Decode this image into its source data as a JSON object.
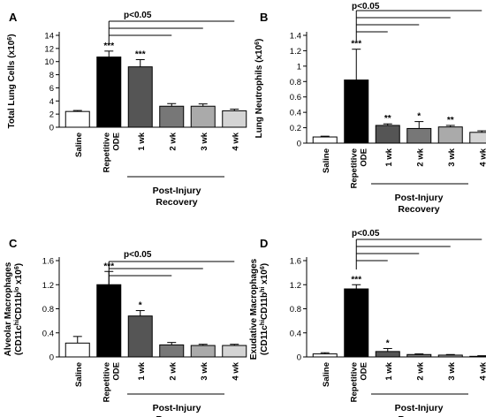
{
  "sig_text": "p<0.05",
  "recovery_label_line1": "Post-Injury",
  "recovery_label_line2": "Recovery",
  "colors": [
    "#ffffff",
    "#000000",
    "#555555",
    "#777777",
    "#aaaaaa",
    "#d4d4d4"
  ],
  "chart_data": [
    {
      "type": "bar",
      "panel": "A",
      "categories": [
        "Saline",
        "Repetitive ODE",
        "1 wk",
        "2 wk",
        "3 wk",
        "4 wk"
      ],
      "values": [
        2.4,
        10.7,
        9.2,
        3.2,
        3.2,
        2.5
      ],
      "errors": [
        0.15,
        0.9,
        1.1,
        0.4,
        0.35,
        0.25
      ],
      "stars": [
        "",
        "***",
        "***",
        "",
        "",
        ""
      ],
      "ylabel_main": "Total Lung Cells (x10",
      "ylabel_sup": "6",
      "ylabel_end": ")",
      "ylim": [
        0,
        14
      ],
      "yticks": [
        "0",
        "2",
        "4",
        "6",
        "8",
        "10",
        "12",
        "14"
      ],
      "significance_brackets": [
        "2 wk",
        "3 wk",
        "4 wk"
      ]
    },
    {
      "type": "bar",
      "panel": "B",
      "categories": [
        "Saline",
        "Repetitive ODE",
        "1 wk",
        "2 wk",
        "3 wk",
        "4 wk"
      ],
      "values": [
        0.08,
        0.82,
        0.23,
        0.19,
        0.21,
        0.14
      ],
      "errors": [
        0.01,
        0.4,
        0.02,
        0.09,
        0.02,
        0.02
      ],
      "stars": [
        "",
        "***",
        "**",
        "*",
        "**",
        ""
      ],
      "ylabel_main": "Lung Neutrophils (x10",
      "ylabel_sup": "6",
      "ylabel_end": ")",
      "ylim": [
        0,
        1.4
      ],
      "yticks": [
        "0",
        "0.2",
        "0.4",
        "0.6",
        "0.8",
        "1",
        "1.2",
        "1.4"
      ],
      "significance_brackets": [
        "1 wk",
        "2 wk",
        "3 wk",
        "4 wk"
      ]
    },
    {
      "type": "bar",
      "panel": "C",
      "categories": [
        "Saline",
        "Repetitive ODE",
        "1 wk",
        "2 wk",
        "3 wk",
        "4 wk"
      ],
      "values": [
        0.23,
        1.2,
        0.68,
        0.2,
        0.19,
        0.19
      ],
      "errors": [
        0.11,
        0.22,
        0.09,
        0.04,
        0.02,
        0.02
      ],
      "stars": [
        "",
        "***",
        "*",
        "",
        "",
        ""
      ],
      "ylabel_main": "Alveolar Macrophages",
      "ylabel_line2_pre": "(CD11c",
      "ylabel_line2_sup1": "hi",
      "ylabel_line2_mid": "CD11b",
      "ylabel_line2_sup2": "lo",
      "ylabel_line2_mid2": " x10",
      "ylabel_line2_sup3": "6",
      "ylabel_line2_end": ")",
      "ylim": [
        0,
        1.6
      ],
      "yticks": [
        "0",
        "0.4",
        "0.8",
        "1.2",
        "1.6"
      ],
      "significance_brackets": [
        "2 wk",
        "3 wk",
        "4 wk"
      ]
    },
    {
      "type": "bar",
      "panel": "D",
      "categories": [
        "Saline",
        "Repetitive ODE",
        "1 wk",
        "2 wk",
        "3 wk",
        "4 wk"
      ],
      "values": [
        0.05,
        1.13,
        0.09,
        0.04,
        0.03,
        0.01
      ],
      "errors": [
        0.02,
        0.07,
        0.05,
        0.01,
        0.01,
        0.01
      ],
      "stars": [
        "",
        "***",
        "*",
        "",
        "",
        ""
      ],
      "ylabel_main": "Exudative Macrophages",
      "ylabel_line2_pre": "(CD11c",
      "ylabel_line2_sup1": "hi",
      "ylabel_line2_mid": "CD11b",
      "ylabel_line2_sup2": "hi",
      "ylabel_line2_mid2": " x10",
      "ylabel_line2_sup3": "6",
      "ylabel_line2_end": ")",
      "ylim": [
        0,
        1.6
      ],
      "yticks": [
        "0",
        "0.4",
        "0.8",
        "1.2",
        "1.6"
      ],
      "significance_brackets": [
        "1 wk",
        "2 wk",
        "3 wk",
        "4 wk"
      ]
    }
  ]
}
